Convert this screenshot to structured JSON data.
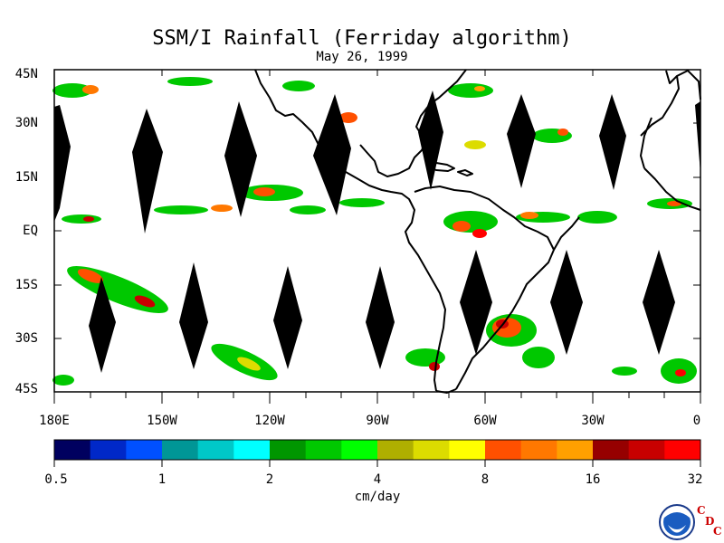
{
  "title": "SSM/I Rainfall (Ferriday algorithm)",
  "date": "May 26, 1999",
  "axes": {
    "y_ticks": [
      "45N",
      "30N",
      "15N",
      "EQ",
      "15S",
      "30S",
      "45S"
    ],
    "x_ticks": [
      "180E",
      "150W",
      "120W",
      "90W",
      "60W",
      "30W",
      "0"
    ]
  },
  "colorbar": {
    "unit": "cm/day",
    "labels": [
      "0.5",
      "1",
      "2",
      "4",
      "8",
      "16",
      "32"
    ],
    "colors": [
      "#00005f",
      "#0028c8",
      "#0050ff",
      "#009696",
      "#00c8c8",
      "#00ffff",
      "#009600",
      "#00c800",
      "#00ff00",
      "#afaf00",
      "#dcdc00",
      "#ffff00",
      "#ff5000",
      "#ff7800",
      "#ffa000",
      "#960000",
      "#c80000",
      "#ff0000"
    ]
  },
  "logo": {
    "name": "NOAA",
    "mark": [
      "C",
      "D",
      "C"
    ]
  }
}
